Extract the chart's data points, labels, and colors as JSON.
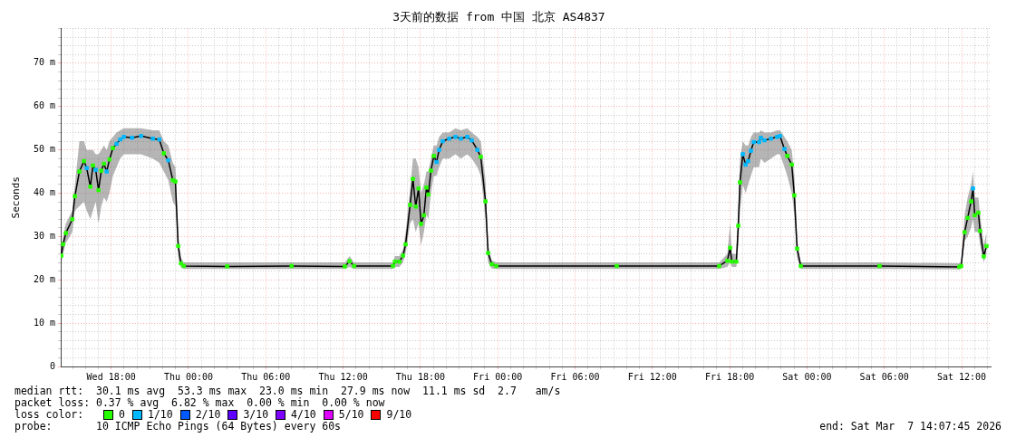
{
  "chart_data": {
    "type": "line",
    "title": "3天前的数据 from 中国 北京 AS4837",
    "ylabel": "Seconds",
    "x": [
      "2026-03-04T14:08",
      "2026-03-04T14:16",
      "2026-03-04T14:29",
      "2026-03-04T14:59",
      "2026-03-04T15:11",
      "2026-03-04T15:32",
      "2026-03-04T15:53",
      "2026-03-04T16:06",
      "2026-03-04T16:23",
      "2026-03-04T16:35",
      "2026-03-04T16:48",
      "2026-03-04T17:01",
      "2026-03-04T17:14",
      "2026-03-04T17:26",
      "2026-03-04T17:39",
      "2026-03-04T17:52",
      "2026-03-04T18:08",
      "2026-03-04T18:25",
      "2026-03-04T18:42",
      "2026-03-04T18:59",
      "2026-03-04T19:37",
      "2026-03-04T20:19",
      "2026-03-04T21:14",
      "2026-03-04T21:44",
      "2026-03-04T22:05",
      "2026-03-04T22:26",
      "2026-03-04T22:47",
      "2026-03-04T22:59",
      "2026-03-04T23:12",
      "2026-03-04T23:25",
      "2026-03-04T23:38",
      "2026-03-05T03:00",
      "2026-03-05T08:00",
      "2026-03-05T12:08",
      "2026-03-05T12:30",
      "2026-03-05T12:51",
      "2026-03-05T15:52",
      "2026-03-05T16:01",
      "2026-03-05T16:22",
      "2026-03-05T16:39",
      "2026-03-05T16:51",
      "2026-03-05T17:12",
      "2026-03-05T17:25",
      "2026-03-05T17:38",
      "2026-03-05T17:51",
      "2026-03-05T18:03",
      "2026-03-05T18:16",
      "2026-03-05T18:28",
      "2026-03-05T18:37",
      "2026-03-05T18:49",
      "2026-03-05T19:02",
      "2026-03-05T19:15",
      "2026-03-05T19:27",
      "2026-03-05T19:44",
      "2026-03-05T20:14",
      "2026-03-05T20:43",
      "2026-03-05T21:08",
      "2026-03-05T21:38",
      "2026-03-05T21:59",
      "2026-03-05T22:25",
      "2026-03-05T22:41",
      "2026-03-05T23:03",
      "2026-03-05T23:15",
      "2026-03-05T23:32",
      "2026-03-05T23:53",
      "2026-03-06T09:14",
      "2026-03-06T17:11",
      "2026-03-06T17:49",
      "2026-03-06T18:02",
      "2026-03-06T18:10",
      "2026-03-06T18:31",
      "2026-03-06T18:40",
      "2026-03-06T18:48",
      "2026-03-06T19:01",
      "2026-03-06T19:14",
      "2026-03-06T19:26",
      "2026-03-06T19:39",
      "2026-03-06T19:52",
      "2026-03-06T20:17",
      "2026-03-06T20:25",
      "2026-03-06T20:42",
      "2026-03-06T21:12",
      "2026-03-06T21:41",
      "2026-03-06T21:54",
      "2026-03-06T22:15",
      "2026-03-06T22:28",
      "2026-03-06T22:49",
      "2026-03-06T23:01",
      "2026-03-06T23:14",
      "2026-03-06T23:31",
      "2026-03-07T05:38",
      "2026-03-07T11:49",
      "2026-03-07T11:58",
      "2026-03-07T12:14",
      "2026-03-07T12:28",
      "2026-03-07T12:44",
      "2026-03-07T12:53",
      "2026-03-07T13:01",
      "2026-03-07T13:18",
      "2026-03-07T13:26",
      "2026-03-07T13:43",
      "2026-03-07T13:56"
    ],
    "xlim": [
      "2026-03-04T14:05",
      "2026-03-07T14:15"
    ],
    "xticks": [
      {
        "value": "2026-03-04T15:00",
        "label": null
      },
      {
        "value": "2026-03-04T16:00",
        "label": null
      },
      {
        "value": "2026-03-04T17:00",
        "label": null
      },
      {
        "value": "2026-03-04T18:00",
        "label": "Wed 18:00"
      },
      {
        "value": "2026-03-04T19:00",
        "label": null
      },
      {
        "value": "2026-03-04T20:00",
        "label": null
      },
      {
        "value": "2026-03-04T21:00",
        "label": null
      },
      {
        "value": "2026-03-04T22:00",
        "label": null
      },
      {
        "value": "2026-03-04T23:00",
        "label": null
      },
      {
        "value": "2026-03-05T00:00",
        "label": "Thu 00:00"
      },
      {
        "value": "2026-03-05T01:00",
        "label": null
      },
      {
        "value": "2026-03-05T02:00",
        "label": null
      },
      {
        "value": "2026-03-05T03:00",
        "label": null
      },
      {
        "value": "2026-03-05T04:00",
        "label": null
      },
      {
        "value": "2026-03-05T05:00",
        "label": null
      },
      {
        "value": "2026-03-05T06:00",
        "label": "Thu 06:00"
      },
      {
        "value": "2026-03-05T07:00",
        "label": null
      },
      {
        "value": "2026-03-05T08:00",
        "label": null
      },
      {
        "value": "2026-03-05T09:00",
        "label": null
      },
      {
        "value": "2026-03-05T10:00",
        "label": null
      },
      {
        "value": "2026-03-05T11:00",
        "label": null
      },
      {
        "value": "2026-03-05T12:00",
        "label": "Thu 12:00"
      },
      {
        "value": "2026-03-05T13:00",
        "label": null
      },
      {
        "value": "2026-03-05T14:00",
        "label": null
      },
      {
        "value": "2026-03-05T15:00",
        "label": null
      },
      {
        "value": "2026-03-05T16:00",
        "label": null
      },
      {
        "value": "2026-03-05T17:00",
        "label": null
      },
      {
        "value": "2026-03-05T18:00",
        "label": "Thu 18:00"
      },
      {
        "value": "2026-03-05T19:00",
        "label": null
      },
      {
        "value": "2026-03-05T20:00",
        "label": null
      },
      {
        "value": "2026-03-05T21:00",
        "label": null
      },
      {
        "value": "2026-03-05T22:00",
        "label": null
      },
      {
        "value": "2026-03-05T23:00",
        "label": null
      },
      {
        "value": "2026-03-06T00:00",
        "label": "Fri 00:00"
      },
      {
        "value": "2026-03-06T01:00",
        "label": null
      },
      {
        "value": "2026-03-06T02:00",
        "label": null
      },
      {
        "value": "2026-03-06T03:00",
        "label": null
      },
      {
        "value": "2026-03-06T04:00",
        "label": null
      },
      {
        "value": "2026-03-06T05:00",
        "label": null
      },
      {
        "value": "2026-03-06T06:00",
        "label": "Fri 06:00"
      },
      {
        "value": "2026-03-06T07:00",
        "label": null
      },
      {
        "value": "2026-03-06T08:00",
        "label": null
      },
      {
        "value": "2026-03-06T09:00",
        "label": null
      },
      {
        "value": "2026-03-06T10:00",
        "label": null
      },
      {
        "value": "2026-03-06T11:00",
        "label": null
      },
      {
        "value": "2026-03-06T12:00",
        "label": "Fri 12:00"
      },
      {
        "value": "2026-03-06T13:00",
        "label": null
      },
      {
        "value": "2026-03-06T14:00",
        "label": null
      },
      {
        "value": "2026-03-06T15:00",
        "label": null
      },
      {
        "value": "2026-03-06T16:00",
        "label": null
      },
      {
        "value": "2026-03-06T17:00",
        "label": null
      },
      {
        "value": "2026-03-06T18:00",
        "label": "Fri 18:00"
      },
      {
        "value": "2026-03-06T19:00",
        "label": null
      },
      {
        "value": "2026-03-06T20:00",
        "label": null
      },
      {
        "value": "2026-03-06T21:00",
        "label": null
      },
      {
        "value": "2026-03-06T22:00",
        "label": null
      },
      {
        "value": "2026-03-06T23:00",
        "label": null
      },
      {
        "value": "2026-03-07T00:00",
        "label": "Sat 00:00"
      },
      {
        "value": "2026-03-07T01:00",
        "label": null
      },
      {
        "value": "2026-03-07T02:00",
        "label": null
      },
      {
        "value": "2026-03-07T03:00",
        "label": null
      },
      {
        "value": "2026-03-07T04:00",
        "label": null
      },
      {
        "value": "2026-03-07T05:00",
        "label": null
      },
      {
        "value": "2026-03-07T06:00",
        "label": "Sat 06:00"
      },
      {
        "value": "2026-03-07T07:00",
        "label": null
      },
      {
        "value": "2026-03-07T08:00",
        "label": null
      },
      {
        "value": "2026-03-07T09:00",
        "label": null
      },
      {
        "value": "2026-03-07T10:00",
        "label": null
      },
      {
        "value": "2026-03-07T11:00",
        "label": null
      },
      {
        "value": "2026-03-07T12:00",
        "label": "Sat 12:00"
      },
      {
        "value": "2026-03-07T13:00",
        "label": null
      },
      {
        "value": "2026-03-07T14:00",
        "label": null
      }
    ],
    "ylim": [
      0,
      78
    ],
    "yticks": [
      0,
      {
        "value": 2,
        "label": null
      },
      {
        "value": 4,
        "label": null
      },
      {
        "value": 6,
        "label": null
      },
      {
        "value": 8,
        "label": null
      },
      {
        "value": 10,
        "label": "10 m"
      },
      {
        "value": 12,
        "label": null
      },
      {
        "value": 14,
        "label": null
      },
      {
        "value": 16,
        "label": null
      },
      {
        "value": 18,
        "label": null
      },
      {
        "value": 20,
        "label": "20 m"
      },
      {
        "value": 22,
        "label": null
      },
      {
        "value": 24,
        "label": null
      },
      {
        "value": 26,
        "label": null
      },
      {
        "value": 28,
        "label": null
      },
      {
        "value": 30,
        "label": "30 m"
      },
      {
        "value": 32,
        "label": null
      },
      {
        "value": 34,
        "label": null
      },
      {
        "value": 36,
        "label": null
      },
      {
        "value": 38,
        "label": null
      },
      {
        "value": 40,
        "label": "40 m"
      },
      {
        "value": 42,
        "label": null
      },
      {
        "value": 44,
        "label": null
      },
      {
        "value": 46,
        "label": null
      },
      {
        "value": 48,
        "label": null
      },
      {
        "value": 50,
        "label": "50 m"
      },
      {
        "value": 52,
        "label": null
      },
      {
        "value": 54,
        "label": null
      },
      {
        "value": 56,
        "label": null
      },
      {
        "value": 58,
        "label": null
      },
      {
        "value": 60,
        "label": "60 m"
      },
      {
        "value": 62,
        "label": null
      },
      {
        "value": 64,
        "label": null
      },
      {
        "value": 66,
        "label": null
      },
      {
        "value": 68,
        "label": null
      },
      {
        "value": 70,
        "label": "70 m"
      },
      {
        "value": 72,
        "label": null
      },
      {
        "value": 74,
        "label": null
      },
      {
        "value": 76,
        "label": null
      },
      {
        "value": 78,
        "label": null
      }
    ],
    "grid": true,
    "legend": "bottom",
    "legend_title": "loss color:",
    "series": [
      {
        "color": "#000000",
        "values": [
          25.6,
          28.2,
          30.8,
          34,
          39.3,
          45,
          47.4,
          45.8,
          41.5,
          46.4,
          45.4,
          40.7,
          45.2,
          46.8,
          45,
          47.8,
          50.4,
          51.4,
          52.4,
          53,
          52.8,
          53.2,
          52.6,
          52.4,
          49.2,
          47.6,
          43,
          42.7,
          27.8,
          23.8,
          23.2,
          23.1,
          23.2,
          23.1,
          24.3,
          23.2,
          23.2,
          24.2,
          24.2,
          25.6,
          28.2,
          37.3,
          43.3,
          36.9,
          41.1,
          32.9,
          34.9,
          41.3,
          39.7,
          45.2,
          48.6,
          47.2,
          50,
          52,
          52.6,
          53,
          52.6,
          53,
          52.2,
          50,
          48.4,
          38.1,
          26.2,
          23.6,
          23.2,
          23.2,
          23.2,
          24.4,
          27.4,
          24.2,
          24.2,
          32.5,
          42.5,
          49,
          46.6,
          47.4,
          49.8,
          51.8,
          51.8,
          52.8,
          52.2,
          52.6,
          53,
          53.2,
          50.2,
          48.6,
          46.6,
          39.5,
          27.2,
          23.2,
          23.2,
          23,
          23.2,
          31,
          34.3,
          38.1,
          41.1,
          34.9,
          35.5,
          31.3,
          25.4,
          27.8
        ],
        "lower": [
          24,
          26,
          28.5,
          31,
          36,
          37,
          38,
          36,
          34,
          36,
          38,
          33,
          37,
          39,
          38,
          40,
          44,
          46,
          48,
          49,
          49,
          49,
          48,
          47,
          45,
          43,
          38,
          37,
          25,
          22.8,
          22.5,
          22.5,
          22.5,
          22.5,
          23,
          22.5,
          22.5,
          23,
          23,
          24,
          26,
          33,
          34,
          31,
          33,
          28,
          31,
          35,
          34,
          40,
          44,
          44,
          46,
          48,
          48,
          49,
          48,
          49,
          48,
          46,
          44,
          34,
          24,
          22.6,
          22.5,
          22.5,
          22.5,
          23,
          24,
          23,
          23,
          28,
          36,
          42,
          40,
          42,
          44,
          46,
          46,
          48,
          47,
          48,
          49,
          49,
          46,
          44,
          40,
          35,
          25,
          22.5,
          22.5,
          22.4,
          22.5,
          29,
          30,
          32,
          34,
          31,
          31,
          28,
          24,
          26
        ],
        "upper": [
          27.5,
          30,
          33,
          36,
          42,
          52,
          52,
          50,
          50,
          50,
          49,
          49,
          50,
          51,
          50,
          52,
          53,
          54,
          54.5,
          55,
          55,
          55,
          54.5,
          54.5,
          52,
          51,
          47,
          46,
          30,
          25,
          24,
          24,
          24,
          24,
          25.5,
          24,
          24,
          25.5,
          25.5,
          27,
          31,
          41,
          48,
          48,
          46,
          40,
          42,
          45,
          45,
          48,
          51,
          51,
          53,
          54,
          54,
          55,
          54.5,
          55,
          54,
          53,
          52,
          43,
          28,
          24.5,
          24,
          24,
          24,
          26,
          33,
          26,
          26,
          37,
          48,
          52,
          51,
          51,
          53,
          54,
          54,
          54.5,
          54,
          54,
          54.5,
          54.5,
          53,
          52,
          50,
          44,
          29,
          24,
          24,
          23.8,
          24,
          35,
          39,
          42,
          45,
          39,
          39,
          35,
          28,
          31
        ]
      },
      {
        "type": "scatter",
        "marker": "square",
        "name": "0",
        "color": "#26ff00",
        "values": [
          25.6,
          28.2,
          30.8,
          34,
          39.3,
          45,
          47.4,
          null,
          41.5,
          46.4,
          null,
          40.7,
          45.2,
          46.8,
          null,
          47.8,
          50.4,
          null,
          null,
          null,
          null,
          null,
          null,
          null,
          49.2,
          null,
          43,
          42.7,
          27.8,
          23.8,
          23.2,
          23.1,
          23.2,
          23.1,
          24.3,
          23.2,
          23.2,
          24.2,
          24.2,
          25.6,
          28.2,
          37.3,
          43.3,
          36.9,
          41.1,
          32.9,
          34.9,
          41.3,
          39.7,
          45.2,
          48.6,
          null,
          null,
          null,
          null,
          null,
          null,
          null,
          null,
          null,
          48.4,
          38.1,
          26.2,
          23.6,
          23.2,
          23.2,
          23.2,
          24.4,
          27.4,
          24.2,
          24.2,
          32.5,
          42.5,
          null,
          null,
          null,
          null,
          null,
          null,
          null,
          null,
          null,
          null,
          null,
          null,
          48.6,
          46.6,
          39.5,
          27.2,
          23.2,
          23.2,
          23,
          23.2,
          31,
          34.3,
          38.1,
          null,
          34.9,
          35.5,
          31.3,
          25.4,
          27.8
        ]
      },
      {
        "type": "scatter",
        "marker": "square",
        "name": "1/10",
        "color": "#00b8ff",
        "values": [
          null,
          null,
          null,
          null,
          null,
          null,
          null,
          45.8,
          null,
          null,
          45.4,
          null,
          null,
          null,
          45,
          null,
          null,
          51.4,
          52.4,
          53,
          52.8,
          53.2,
          52.6,
          52.4,
          null,
          47.6,
          null,
          null,
          null,
          null,
          null,
          null,
          null,
          null,
          null,
          null,
          null,
          null,
          null,
          null,
          null,
          null,
          null,
          null,
          null,
          null,
          null,
          null,
          null,
          null,
          null,
          47.2,
          50,
          52,
          52.6,
          53,
          52.6,
          53,
          52.2,
          50,
          null,
          null,
          null,
          null,
          null,
          null,
          null,
          null,
          null,
          null,
          null,
          null,
          null,
          49,
          46.6,
          47.4,
          49.8,
          51.8,
          51.8,
          52.8,
          52.2,
          52.6,
          53,
          53.2,
          50.2,
          null,
          null,
          null,
          null,
          null,
          null,
          null,
          null,
          null,
          null,
          null,
          41.1,
          null,
          null,
          null,
          null,
          null
        ]
      },
      {
        "type": "scatter",
        "marker": "square",
        "name": "2/10",
        "color": "#0059ff",
        "values": [
          null,
          null,
          null,
          null,
          null,
          null,
          null,
          null,
          null,
          null,
          null,
          null,
          null,
          null,
          null,
          null,
          null,
          null,
          null,
          null,
          null,
          null,
          null,
          null,
          null,
          null,
          null,
          null,
          null,
          null,
          null,
          null,
          null,
          null,
          null,
          null,
          null,
          null,
          null,
          null,
          null,
          null,
          null,
          null,
          null,
          null,
          null,
          null,
          null,
          null,
          null,
          null,
          null,
          null,
          null,
          null,
          null,
          null,
          null,
          null,
          null,
          null,
          null,
          null,
          null,
          null,
          null,
          null,
          null,
          null,
          null,
          null,
          null,
          null,
          null,
          null,
          null,
          null,
          null,
          null,
          null,
          null,
          null,
          null,
          null,
          null,
          null,
          null,
          null,
          null,
          null,
          null,
          null,
          null,
          null,
          null,
          null,
          null,
          null,
          null,
          null,
          null
        ]
      },
      {
        "type": "scatter",
        "marker": "square",
        "name": "3/10",
        "color": "#5e00ff",
        "values": [
          null,
          null,
          null,
          null,
          null,
          null,
          null,
          null,
          null,
          null,
          null,
          null,
          null,
          null,
          null,
          null,
          null,
          null,
          null,
          null,
          null,
          null,
          null,
          null,
          null,
          null,
          null,
          null,
          null,
          null,
          null,
          null,
          null,
          null,
          null,
          null,
          null,
          null,
          null,
          null,
          null,
          null,
          null,
          null,
          null,
          null,
          null,
          null,
          null,
          null,
          null,
          null,
          null,
          null,
          null,
          null,
          null,
          null,
          null,
          null,
          null,
          null,
          null,
          null,
          null,
          null,
          null,
          null,
          null,
          null,
          null,
          null,
          null,
          null,
          null,
          null,
          null,
          null,
          null,
          null,
          null,
          null,
          null,
          null,
          null,
          null,
          null,
          null,
          null,
          null,
          null,
          null,
          null,
          null,
          null,
          null,
          null,
          null,
          null,
          null,
          null,
          null
        ]
      },
      {
        "type": "scatter",
        "marker": "square",
        "name": "4/10",
        "color": "#7e00ff",
        "values": [
          null,
          null,
          null,
          null,
          null,
          null,
          null,
          null,
          null,
          null,
          null,
          null,
          null,
          null,
          null,
          null,
          null,
          null,
          null,
          null,
          null,
          null,
          null,
          null,
          null,
          null,
          null,
          null,
          null,
          null,
          null,
          null,
          null,
          null,
          null,
          null,
          null,
          null,
          null,
          null,
          null,
          null,
          null,
          null,
          null,
          null,
          null,
          null,
          null,
          null,
          null,
          null,
          null,
          null,
          null,
          null,
          null,
          null,
          null,
          null,
          null,
          null,
          null,
          null,
          null,
          null,
          null,
          null,
          null,
          null,
          null,
          null,
          null,
          null,
          null,
          null,
          null,
          null,
          null,
          null,
          null,
          null,
          null,
          null,
          null,
          null,
          null,
          null,
          null,
          null,
          null,
          null,
          null,
          null,
          null,
          null,
          null,
          null,
          null,
          null,
          null,
          null
        ]
      },
      {
        "type": "scatter",
        "marker": "square",
        "name": "5/10",
        "color": "#dd00ff",
        "values": [
          null,
          null,
          null,
          null,
          null,
          null,
          null,
          null,
          null,
          null,
          null,
          null,
          null,
          null,
          null,
          null,
          null,
          null,
          null,
          null,
          null,
          null,
          null,
          null,
          null,
          null,
          null,
          null,
          null,
          null,
          null,
          null,
          null,
          null,
          null,
          null,
          null,
          null,
          null,
          null,
          null,
          null,
          null,
          null,
          null,
          null,
          null,
          null,
          null,
          null,
          null,
          null,
          null,
          null,
          null,
          null,
          null,
          null,
          null,
          null,
          null,
          null,
          null,
          null,
          null,
          null,
          null,
          null,
          null,
          null,
          null,
          null,
          null,
          null,
          null,
          null,
          null,
          null,
          null,
          null,
          null,
          null,
          null,
          null,
          null,
          null,
          null,
          null,
          null,
          null,
          null,
          null,
          null,
          null,
          null,
          null,
          null,
          null,
          null,
          null,
          null,
          null
        ]
      },
      {
        "type": "scatter",
        "marker": "square",
        "name": "9/10",
        "color": "#ff0000",
        "values": [
          null,
          null,
          null,
          null,
          null,
          null,
          null,
          null,
          null,
          null,
          null,
          null,
          null,
          null,
          null,
          null,
          null,
          null,
          null,
          null,
          null,
          null,
          null,
          null,
          null,
          null,
          null,
          null,
          null,
          null,
          null,
          null,
          null,
          null,
          null,
          null,
          null,
          null,
          null,
          null,
          null,
          null,
          null,
          null,
          null,
          null,
          null,
          null,
          null,
          null,
          null,
          null,
          null,
          null,
          null,
          null,
          null,
          null,
          null,
          null,
          null,
          null,
          null,
          null,
          null,
          null,
          null,
          null,
          null,
          null,
          null,
          null,
          null,
          null,
          null,
          null,
          null,
          null,
          null,
          null,
          null,
          null,
          null,
          null,
          null,
          null,
          null,
          null,
          null,
          null,
          null,
          null,
          null,
          null,
          null,
          null,
          null,
          null,
          null,
          null,
          null,
          null
        ]
      }
    ],
    "annotations": [
      "median rtt:  30.1 ms avg  53.3 ms max  23.0 ms min  27.9 ms now  11.1 ms sd  2.7   am/s",
      "packet loss: 0.37 % avg  6.82 % max  0.00 % min  0.00 % now",
      "probe:       10 ICMP Echo Pings (64 Bytes) every 60s",
      "end: Sat Mar  7 14:07:45 2026"
    ]
  }
}
